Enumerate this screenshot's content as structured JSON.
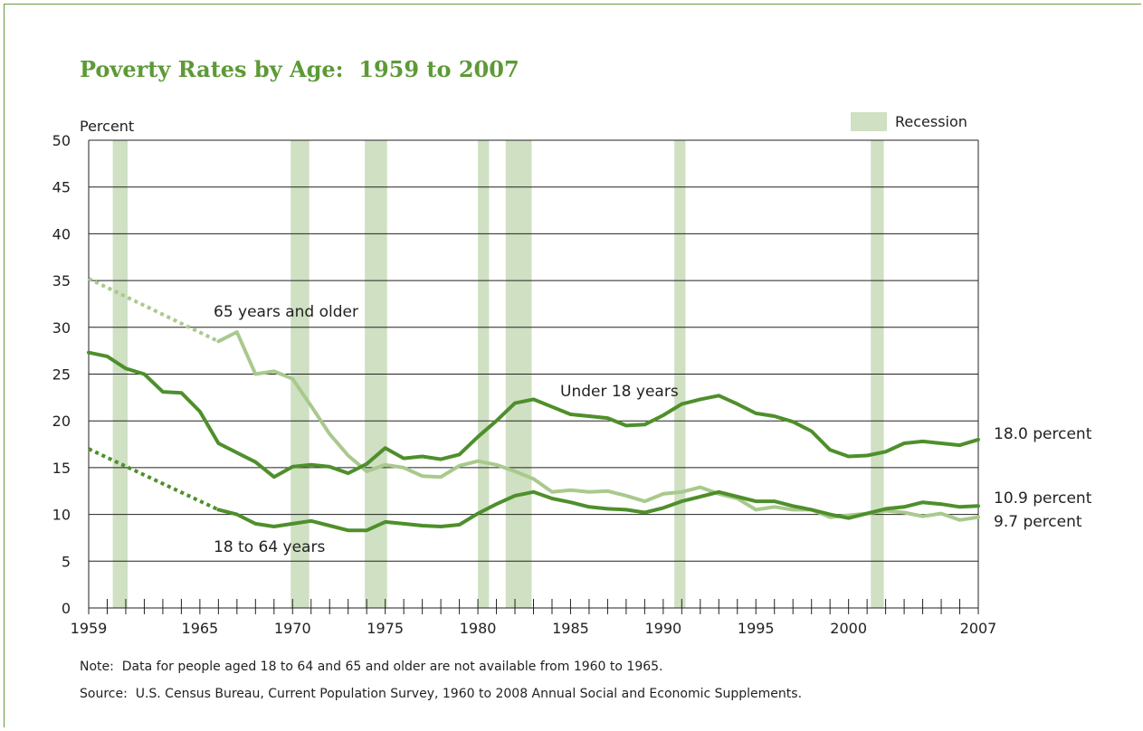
{
  "chart_data": {
    "type": "line",
    "title": "Poverty Rates by Age:  1959 to 2007",
    "ylabel": "Percent",
    "xlabel": "",
    "xlim": [
      1959,
      2007
    ],
    "ylim": [
      0,
      50
    ],
    "x_tick_labels": [
      "1959",
      "1965",
      "1970",
      "1975",
      "1980",
      "1985",
      "1990",
      "1995",
      "2000",
      "2007"
    ],
    "y_tick_labels": [
      "0",
      "5",
      "10",
      "15",
      "20",
      "25",
      "30",
      "35",
      "40",
      "45",
      "50"
    ],
    "grid": true,
    "legend": {
      "label": "Recession",
      "position": "top-right",
      "color": "#cfe0c3"
    },
    "recessions": [
      [
        1960.3,
        1961.1
      ],
      [
        1969.9,
        1970.9
      ],
      [
        1973.9,
        1975.1
      ],
      [
        1980.0,
        1980.6
      ],
      [
        1981.5,
        1982.9
      ],
      [
        1990.6,
        1991.2
      ],
      [
        2001.2,
        2001.9
      ]
    ],
    "series": [
      {
        "name": "Under 18 years",
        "color": "#4e8f2b",
        "end_label": "18.0 percent",
        "data_gap_years": [],
        "x": [
          1959,
          1960,
          1961,
          1962,
          1963,
          1964,
          1965,
          1966,
          1967,
          1968,
          1969,
          1970,
          1971,
          1972,
          1973,
          1974,
          1975,
          1976,
          1977,
          1978,
          1979,
          1980,
          1981,
          1982,
          1983,
          1984,
          1985,
          1986,
          1987,
          1988,
          1989,
          1990,
          1991,
          1992,
          1993,
          1994,
          1995,
          1996,
          1997,
          1998,
          1999,
          2000,
          2001,
          2002,
          2003,
          2004,
          2005,
          2006,
          2007
        ],
        "y": [
          27.3,
          26.9,
          25.6,
          25.0,
          23.1,
          23.0,
          21.0,
          17.6,
          16.6,
          15.6,
          14.0,
          15.1,
          15.3,
          15.1,
          14.4,
          15.4,
          17.1,
          16.0,
          16.2,
          15.9,
          16.4,
          18.3,
          20.0,
          21.9,
          22.3,
          21.5,
          20.7,
          20.5,
          20.3,
          19.5,
          19.6,
          20.6,
          21.8,
          22.3,
          22.7,
          21.8,
          20.8,
          20.5,
          19.9,
          18.9,
          16.9,
          16.2,
          16.3,
          16.7,
          17.6,
          17.8,
          17.6,
          17.4,
          18.0
        ]
      },
      {
        "name": "65 years and older",
        "color": "#a9c98d",
        "end_label": "9.7 percent",
        "data_gap_years": [
          1960,
          1961,
          1962,
          1963,
          1964,
          1965
        ],
        "x": [
          1959,
          1966,
          1967,
          1968,
          1969,
          1970,
          1971,
          1972,
          1973,
          1974,
          1975,
          1976,
          1977,
          1978,
          1979,
          1980,
          1981,
          1982,
          1983,
          1984,
          1985,
          1986,
          1987,
          1988,
          1989,
          1990,
          1991,
          1992,
          1993,
          1994,
          1995,
          1996,
          1997,
          1998,
          1999,
          2000,
          2001,
          2002,
          2003,
          2004,
          2005,
          2006,
          2007
        ],
        "y": [
          35.2,
          28.5,
          29.5,
          25.0,
          25.3,
          24.5,
          21.6,
          18.6,
          16.3,
          14.6,
          15.3,
          15.0,
          14.1,
          14.0,
          15.2,
          15.7,
          15.3,
          14.6,
          13.8,
          12.4,
          12.6,
          12.4,
          12.5,
          12.0,
          11.4,
          12.2,
          12.4,
          12.9,
          12.2,
          11.7,
          10.5,
          10.8,
          10.5,
          10.5,
          9.7,
          9.9,
          10.1,
          10.4,
          10.2,
          9.8,
          10.1,
          9.4,
          9.7
        ]
      },
      {
        "name": "18 to 64 years",
        "color": "#4e8f2b",
        "end_label": "10.9 percent",
        "data_gap_years": [
          1960,
          1961,
          1962,
          1963,
          1964,
          1965
        ],
        "x": [
          1959,
          1966,
          1967,
          1968,
          1969,
          1970,
          1971,
          1972,
          1973,
          1974,
          1975,
          1976,
          1977,
          1978,
          1979,
          1980,
          1981,
          1982,
          1983,
          1984,
          1985,
          1986,
          1987,
          1988,
          1989,
          1990,
          1991,
          1992,
          1993,
          1994,
          1995,
          1996,
          1997,
          1998,
          1999,
          2000,
          2001,
          2002,
          2003,
          2004,
          2005,
          2006,
          2007
        ],
        "y": [
          17.0,
          10.5,
          10.0,
          9.0,
          8.7,
          9.0,
          9.3,
          8.8,
          8.3,
          8.3,
          9.2,
          9.0,
          8.8,
          8.7,
          8.9,
          10.1,
          11.1,
          12.0,
          12.4,
          11.7,
          11.3,
          10.8,
          10.6,
          10.5,
          10.2,
          10.7,
          11.4,
          11.9,
          12.4,
          11.9,
          11.4,
          11.4,
          10.9,
          10.5,
          10.0,
          9.6,
          10.1,
          10.6,
          10.8,
          11.3,
          11.1,
          10.8,
          10.9
        ]
      }
    ],
    "annotations": {
      "label_65_older": "65 years and older",
      "label_under_18": "Under 18 years",
      "label_18_64": "18 to 64 years",
      "end_label_under_18": "18.0 percent",
      "end_label_18_64": "10.9 percent",
      "end_label_65_older": "9.7 percent"
    }
  },
  "notes": {
    "note": "Note:  Data for people aged 18 to 64 and 65 and older are not available from 1960 to 1965.",
    "source": "Source:  U.S. Census Bureau, Current Population Survey, 1960 to 2008 Annual Social and Economic Supplements."
  },
  "colors": {
    "title": "#5d9a36",
    "dark_line": "#4e8f2b",
    "light_line": "#a9c98d",
    "recession": "#cfe0c3"
  }
}
